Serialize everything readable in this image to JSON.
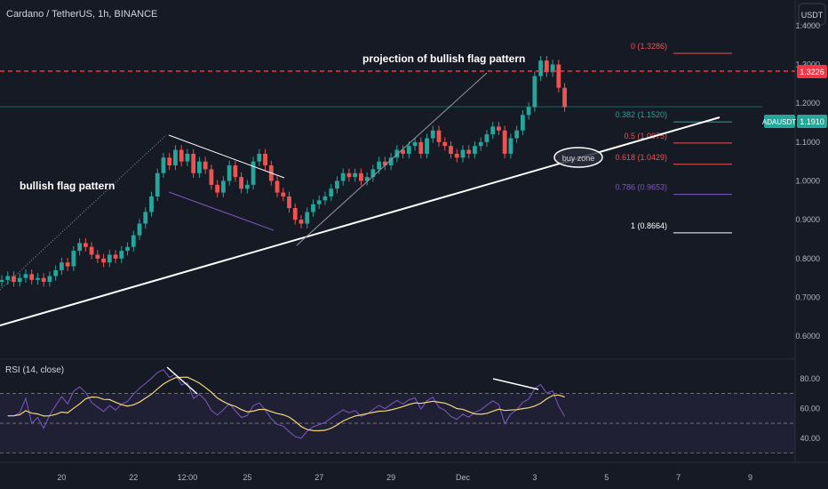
{
  "header": {
    "symbol_title": "Cardano / TetherUS, 1h, BINANCE",
    "currency_button": "USDT"
  },
  "colors": {
    "background": "#161a25",
    "up": "#26a69a",
    "down": "#ef5350",
    "resistance": "#f23645",
    "rsi_line": "#7e57c2",
    "rsi_ma": "#f5d67a",
    "trendline": "#ffffff"
  },
  "annotations": {
    "flag_projection": "projection of bullish flag pattern",
    "flag_pattern": "bullish flag pattern",
    "buy_zone": "buy zone"
  },
  "price_badges": {
    "resistance": "1.3226",
    "current_symbol": "ADAUSDT",
    "current_price": "1.1910"
  },
  "rsi_title": "RSI (14, close)",
  "chart_data": {
    "type": "candlestick",
    "price_axis": {
      "min": 0.55,
      "max": 1.45,
      "ticks": [
        "1.4000",
        "1.3000",
        "1.2000",
        "1.1000",
        "1.0000",
        "0.9000",
        "0.8000",
        "0.7000",
        "0.6000"
      ],
      "tick_values": [
        1.4,
        1.3,
        1.2,
        1.1,
        1.0,
        0.9,
        0.8,
        0.7,
        0.6
      ]
    },
    "x_axis": {
      "ticks": [
        "20",
        "22",
        "12:00",
        "25",
        "27",
        "29",
        "Dec",
        "3",
        "5",
        "7",
        "9"
      ],
      "tick_index": [
        10,
        22,
        31,
        41,
        53,
        65,
        77,
        89,
        101,
        113,
        125
      ]
    },
    "resistance_level": 1.3226,
    "current_price": 1.191,
    "fib_levels": [
      {
        "label": "0 (1.3286)",
        "value": 1.3286,
        "color": "#ef5350"
      },
      {
        "label": "0.382 (1.1520)",
        "value": 1.152,
        "color": "#26a69a"
      },
      {
        "label": "0.5 (1.0975)",
        "value": 1.0975,
        "color": "#ef5350"
      },
      {
        "label": "0.618 (1.0429)",
        "value": 1.0429,
        "color": "#ef5350"
      },
      {
        "label": "0.786 (0.9653)",
        "value": 0.9653,
        "color": "#7e57c2"
      },
      {
        "label": "1 (0.8664)",
        "value": 0.8664,
        "color": "#ffffff"
      }
    ],
    "rsi_axis": {
      "min": 25,
      "max": 90,
      "ticks": [
        "80.00",
        "60.00",
        "40.00"
      ],
      "tick_values": [
        80,
        60,
        40
      ],
      "bands": [
        70,
        30
      ]
    },
    "closes": [
      0.745,
      0.755,
      0.74,
      0.75,
      0.76,
      0.745,
      0.75,
      0.74,
      0.755,
      0.77,
      0.79,
      0.78,
      0.82,
      0.84,
      0.83,
      0.81,
      0.8,
      0.79,
      0.81,
      0.8,
      0.82,
      0.83,
      0.86,
      0.89,
      0.92,
      0.96,
      1.02,
      1.06,
      1.04,
      1.08,
      1.05,
      1.07,
      1.02,
      1.05,
      1.03,
      0.99,
      0.97,
      1.0,
      1.04,
      1.01,
      0.98,
      0.99,
      1.05,
      1.07,
      1.04,
      1.0,
      0.97,
      0.96,
      0.93,
      0.9,
      0.89,
      0.92,
      0.94,
      0.95,
      0.96,
      0.98,
      1.0,
      1.02,
      1.01,
      1.02,
      1.0,
      1.01,
      1.03,
      1.05,
      1.04,
      1.06,
      1.08,
      1.07,
      1.09,
      1.1,
      1.07,
      1.11,
      1.13,
      1.1,
      1.09,
      1.07,
      1.06,
      1.08,
      1.07,
      1.09,
      1.1,
      1.12,
      1.14,
      1.13,
      1.07,
      1.11,
      1.13,
      1.17,
      1.19,
      1.27,
      1.31,
      1.28,
      1.3,
      1.24,
      1.19
    ]
  }
}
